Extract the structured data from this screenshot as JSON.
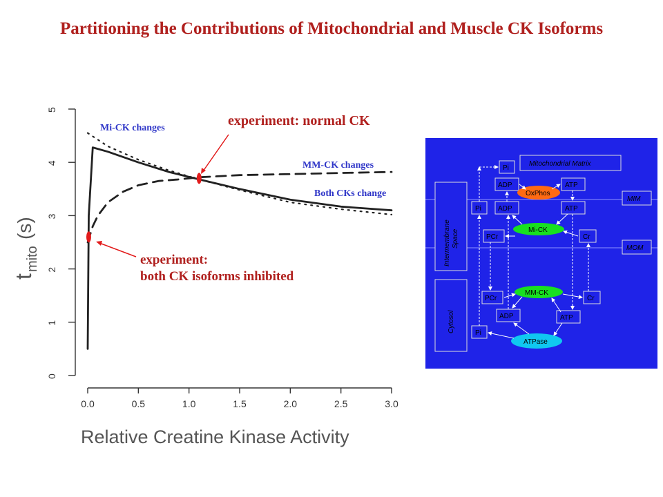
{
  "title": "Partitioning the Contributions of Mitochondrial and Muscle CK  Isoforms",
  "chart_data": {
    "type": "line",
    "xlabel": "Relative Creatine Kinase Activity",
    "ylabel_main": "t",
    "ylabel_sub": "mito",
    "ylabel_unit": "(s)",
    "xlim": [
      0,
      3
    ],
    "ylim": [
      0,
      5
    ],
    "xticks": [
      "0.0",
      "0.5",
      "1.0",
      "1.5",
      "2.0",
      "2.5",
      "3.0"
    ],
    "yticks": [
      "0",
      "1",
      "2",
      "3",
      "4",
      "5"
    ],
    "series": [
      {
        "name": "Both CKs change",
        "style": "solid",
        "x": [
          0,
          0.01,
          0.05,
          0.2,
          0.5,
          0.8,
          1.1,
          1.5,
          2.0,
          2.5,
          3.0
        ],
        "y": [
          0.5,
          3.0,
          4.28,
          4.2,
          4.0,
          3.82,
          3.68,
          3.5,
          3.3,
          3.17,
          3.1
        ]
      },
      {
        "name": "MM-CK changes",
        "style": "dashed",
        "x": [
          0,
          0.05,
          0.1,
          0.2,
          0.35,
          0.5,
          0.7,
          0.9,
          1.1,
          1.5,
          2.0,
          2.5,
          3.0
        ],
        "y": [
          2.5,
          2.8,
          3.0,
          3.25,
          3.45,
          3.57,
          3.65,
          3.68,
          3.72,
          3.76,
          3.78,
          3.8,
          3.82
        ]
      },
      {
        "name": "Mi-CK changes",
        "style": "dotted",
        "x": [
          0,
          0.2,
          0.5,
          0.8,
          1.1,
          1.5,
          2.0,
          2.5,
          3.0
        ],
        "y": [
          4.55,
          4.3,
          4.05,
          3.85,
          3.68,
          3.48,
          3.25,
          3.12,
          3.02
        ]
      }
    ],
    "markers": [
      {
        "x": 0.01,
        "y": 2.6
      },
      {
        "x": 1.1,
        "y": 3.7
      }
    ],
    "annotations": {
      "normal": "experiment: normal CK",
      "inhibited_1": "experiment:",
      "inhibited_2": "both CK isoforms inhibited"
    },
    "colors": {
      "lines": "#222222",
      "markers": "#e21b1b",
      "annotation_text": "#b0201e",
      "series_labels": "#2f36c8"
    }
  },
  "diagram": {
    "background": "#1f23e8",
    "regions": {
      "matrix": "Mitochondrial Matrix",
      "mim": "MIM",
      "mom": "MOM",
      "intermembrane": "Intermembrane Space",
      "cytosol": "Cytosol"
    },
    "nodes": {
      "pi_top": "Pi",
      "adp_m": "ADP",
      "atp_m": "ATP",
      "oxphos": "OxPhos",
      "pi_ims": "Pi",
      "adp_ims": "ADP",
      "atp_ims": "ATP",
      "mick": "Mi-CK",
      "pcr_ims": "PCr",
      "cr_ims": "Cr",
      "mmck": "MM-CK",
      "pcr_c": "PCr",
      "cr_c": "Cr",
      "adp_c": "ADP",
      "atp_c": "ATP",
      "pi_c": "Pi",
      "atpase": "ATPase"
    },
    "colors": {
      "oxphos": "#ff6a12",
      "mick": "#18e020",
      "mmck": "#18e020",
      "atpase": "#10c8f0",
      "box": "#1f23e8"
    }
  }
}
